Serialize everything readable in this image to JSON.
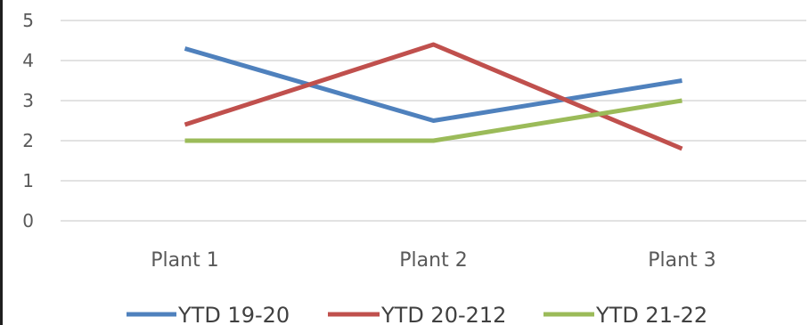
{
  "chart_data": {
    "type": "line",
    "categories": [
      "Plant 1",
      "Plant 2",
      "Plant 3"
    ],
    "series": [
      {
        "name": "YTD 19-20",
        "values": [
          4.3,
          2.5,
          3.5
        ],
        "color": "#4F81BD"
      },
      {
        "name": "YTD 20-212",
        "values": [
          2.4,
          4.4,
          1.8
        ],
        "color": "#C0504D"
      },
      {
        "name": "YTD 21-22",
        "values": [
          2.0,
          2.0,
          3.0
        ],
        "color": "#9BBB59"
      }
    ],
    "title": "",
    "xlabel": "",
    "ylabel": "",
    "ylim": [
      0,
      5
    ],
    "yticks": [
      "0",
      "1",
      "2",
      "3",
      "4",
      "5"
    ],
    "grid": true,
    "legend_position": "bottom"
  }
}
